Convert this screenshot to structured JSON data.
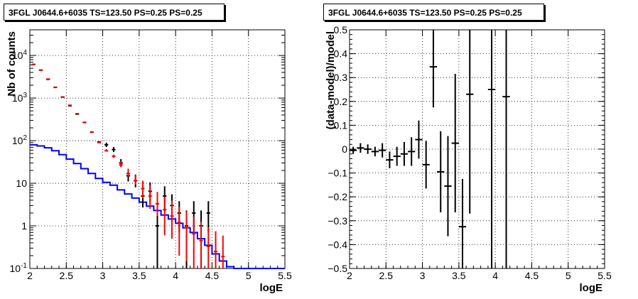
{
  "chart_data": [
    {
      "type": "histogram",
      "title": "3FGL J0644.6+6035 TS=123.50 PS=0.25 PS=0.25",
      "xlabel": "logE",
      "ylabel": "Nb of counts",
      "xlim": [
        2,
        5.5
      ],
      "ylim": [
        0.1,
        40000
      ],
      "yscale": "log",
      "grid": true,
      "x_ticks": [
        "2",
        "2.5",
        "3",
        "3.5",
        "4",
        "4.5",
        "5",
        "5.5"
      ],
      "y_ticks": [
        "10^-1",
        "1",
        "10",
        "10^2",
        "10^3",
        "10^4"
      ],
      "bin_width": 0.1,
      "series": [
        {
          "color": "#ff0000",
          "style": "points",
          "x": [
            2.05,
            2.15,
            2.25,
            2.35,
            2.45,
            2.55,
            2.65,
            2.75,
            2.85,
            2.95,
            3.05,
            3.15,
            3.25,
            3.35,
            3.45,
            3.55,
            3.65,
            3.75,
            3.85,
            3.95,
            4.05,
            4.15,
            4.25,
            4.35,
            4.45,
            4.55,
            4.65
          ],
          "y": [
            6200,
            4500,
            2800,
            1800,
            1050,
            680,
            430,
            270,
            160,
            90,
            58,
            43,
            27,
            17,
            11.5,
            7.5,
            5,
            3.3,
            2.4,
            1.7,
            1.2,
            0.9,
            0.65,
            0.45,
            0.33,
            0.25,
            0.19
          ],
          "yerr_low": [
            0,
            0,
            0,
            0,
            0,
            0,
            0,
            0,
            0,
            0,
            3,
            3.5,
            3,
            2.5,
            2.2,
            3,
            2.5,
            1.6,
            1.8,
            1.2,
            1.0,
            0.75,
            0.55,
            0.37,
            0.28,
            0.22,
            0.17
          ],
          "yerr_high": [
            0,
            0,
            0,
            0,
            0,
            0,
            0,
            0,
            0,
            0,
            5,
            4,
            5,
            5,
            4,
            4,
            4,
            3,
            2.5,
            2.2,
            1.6,
            1.3,
            1.0,
            0.8,
            0.6,
            0.5,
            0.4
          ]
        },
        {
          "color": "#000000",
          "style": "points",
          "x": [
            2.05,
            2.15,
            2.25,
            2.35,
            2.45,
            2.55,
            2.65,
            2.75,
            2.85,
            2.95,
            3.05,
            3.15,
            3.25,
            3.35,
            3.45,
            3.55,
            3.65,
            3.75,
            3.85,
            3.95,
            4.05,
            4.15,
            4.25,
            4.35,
            4.45
          ],
          "y": [
            6150,
            4550,
            2750,
            1780,
            1060,
            660,
            420,
            268,
            158,
            93,
            80,
            62,
            30,
            15,
            11.5,
            5,
            6.5,
            1,
            5,
            3,
            2,
            1,
            2,
            1,
            2
          ],
          "yerr_low": [
            0,
            0,
            0,
            0,
            0,
            0,
            0,
            0,
            0,
            0,
            9,
            8,
            6,
            4,
            3.5,
            2.3,
            3,
            0.9,
            2.8,
            1.7,
            1.3,
            0.9,
            1.3,
            0.9,
            1.3
          ],
          "yerr_high": [
            0,
            0,
            0,
            0,
            0,
            0,
            0,
            0,
            0,
            0,
            10,
            9,
            7,
            5,
            4.5,
            3.5,
            4,
            1.3,
            3.5,
            2.5,
            1.8,
            1.3,
            1.8,
            1.3,
            1.8
          ]
        },
        {
          "color": "#0000ff",
          "style": "step",
          "x_edges": [
            2.0,
            2.1,
            2.2,
            2.3,
            2.4,
            2.5,
            2.6,
            2.7,
            2.8,
            2.9,
            3.0,
            3.1,
            3.2,
            3.3,
            3.4,
            3.5,
            3.6,
            3.7,
            3.8,
            3.9,
            4.0,
            4.1,
            4.2,
            4.3,
            4.4,
            4.5,
            4.6,
            4.7,
            4.8,
            5.5
          ],
          "y": [
            80,
            75,
            68,
            58,
            47,
            37,
            29,
            22,
            17,
            13,
            10.5,
            9,
            7,
            5.6,
            4.5,
            3.6,
            2.9,
            2.3,
            1.8,
            1.45,
            1.15,
            0.9,
            0.7,
            0.5,
            0.35,
            0.22,
            0.15,
            0.11,
            0.1
          ]
        }
      ]
    },
    {
      "type": "scatter",
      "title": "3FGL J0644.6+6035 TS=123.50 PS=0.25 PS=0.25",
      "xlabel": "logE",
      "ylabel": "(data-model)/model",
      "xlim": [
        2,
        5.5
      ],
      "ylim": [
        -0.5,
        0.5
      ],
      "grid": true,
      "x_ticks": [
        "2",
        "2.5",
        "3",
        "3.5",
        "4",
        "4.5",
        "5",
        "5.5"
      ],
      "y_ticks": [
        "−0.5",
        "−0.4",
        "−0.3",
        "−0.2",
        "−0.1",
        "0",
        "0.1",
        "0.2",
        "0.3",
        "0.4",
        "0.5"
      ],
      "series": [
        {
          "color": "#000000",
          "x": [
            2.05,
            2.15,
            2.25,
            2.35,
            2.45,
            2.55,
            2.65,
            2.75,
            2.85,
            2.95,
            3.05,
            3.15,
            3.25,
            3.35,
            3.45,
            3.55,
            3.65,
            3.95,
            4.15
          ],
          "y": [
            -0.005,
            0.005,
            0.0,
            -0.01,
            -0.005,
            -0.045,
            -0.03,
            -0.02,
            -0.01,
            0.04,
            -0.065,
            0.345,
            -0.095,
            -0.155,
            0.025,
            -0.325,
            0.23,
            0.25,
            0.22
          ],
          "yerr": [
            0.015,
            0.02,
            0.02,
            0.02,
            0.03,
            0.035,
            0.04,
            0.05,
            0.06,
            0.08,
            0.1,
            0.17,
            0.17,
            0.21,
            0.29,
            0.2,
            0.5,
            0.8,
            0.8
          ]
        }
      ]
    }
  ]
}
